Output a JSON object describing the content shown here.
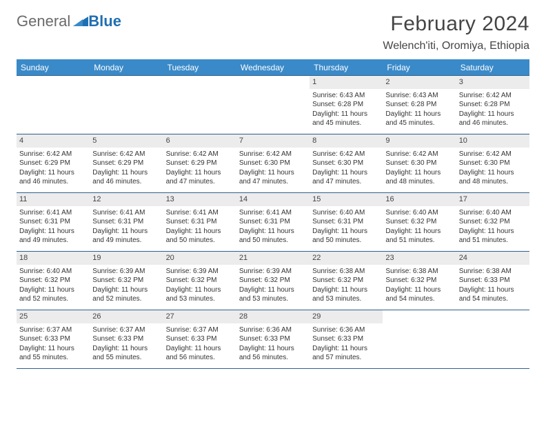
{
  "logo": {
    "general": "General",
    "blue": "Blue"
  },
  "title": "February 2024",
  "location": "Welench'iti, Oromiya, Ethiopia",
  "colors": {
    "header_bg": "#3a8ac9",
    "header_text": "#ffffff",
    "daynum_bg": "#ececec",
    "rule": "#2e5f8a",
    "logo_gray": "#6a6a6a",
    "logo_blue": "#1f6fb2",
    "text": "#333333"
  },
  "typography": {
    "title_pt": 30,
    "location_pt": 16,
    "header_pt": 12,
    "body_pt": 10
  },
  "weekdays": [
    "Sunday",
    "Monday",
    "Tuesday",
    "Wednesday",
    "Thursday",
    "Friday",
    "Saturday"
  ],
  "weeks": [
    [
      null,
      null,
      null,
      null,
      {
        "n": "1",
        "sunrise": "Sunrise: 6:43 AM",
        "sunset": "Sunset: 6:28 PM",
        "daylight": "Daylight: 11 hours and 45 minutes."
      },
      {
        "n": "2",
        "sunrise": "Sunrise: 6:43 AM",
        "sunset": "Sunset: 6:28 PM",
        "daylight": "Daylight: 11 hours and 45 minutes."
      },
      {
        "n": "3",
        "sunrise": "Sunrise: 6:42 AM",
        "sunset": "Sunset: 6:28 PM",
        "daylight": "Daylight: 11 hours and 46 minutes."
      }
    ],
    [
      {
        "n": "4",
        "sunrise": "Sunrise: 6:42 AM",
        "sunset": "Sunset: 6:29 PM",
        "daylight": "Daylight: 11 hours and 46 minutes."
      },
      {
        "n": "5",
        "sunrise": "Sunrise: 6:42 AM",
        "sunset": "Sunset: 6:29 PM",
        "daylight": "Daylight: 11 hours and 46 minutes."
      },
      {
        "n": "6",
        "sunrise": "Sunrise: 6:42 AM",
        "sunset": "Sunset: 6:29 PM",
        "daylight": "Daylight: 11 hours and 47 minutes."
      },
      {
        "n": "7",
        "sunrise": "Sunrise: 6:42 AM",
        "sunset": "Sunset: 6:30 PM",
        "daylight": "Daylight: 11 hours and 47 minutes."
      },
      {
        "n": "8",
        "sunrise": "Sunrise: 6:42 AM",
        "sunset": "Sunset: 6:30 PM",
        "daylight": "Daylight: 11 hours and 47 minutes."
      },
      {
        "n": "9",
        "sunrise": "Sunrise: 6:42 AM",
        "sunset": "Sunset: 6:30 PM",
        "daylight": "Daylight: 11 hours and 48 minutes."
      },
      {
        "n": "10",
        "sunrise": "Sunrise: 6:42 AM",
        "sunset": "Sunset: 6:30 PM",
        "daylight": "Daylight: 11 hours and 48 minutes."
      }
    ],
    [
      {
        "n": "11",
        "sunrise": "Sunrise: 6:41 AM",
        "sunset": "Sunset: 6:31 PM",
        "daylight": "Daylight: 11 hours and 49 minutes."
      },
      {
        "n": "12",
        "sunrise": "Sunrise: 6:41 AM",
        "sunset": "Sunset: 6:31 PM",
        "daylight": "Daylight: 11 hours and 49 minutes."
      },
      {
        "n": "13",
        "sunrise": "Sunrise: 6:41 AM",
        "sunset": "Sunset: 6:31 PM",
        "daylight": "Daylight: 11 hours and 50 minutes."
      },
      {
        "n": "14",
        "sunrise": "Sunrise: 6:41 AM",
        "sunset": "Sunset: 6:31 PM",
        "daylight": "Daylight: 11 hours and 50 minutes."
      },
      {
        "n": "15",
        "sunrise": "Sunrise: 6:40 AM",
        "sunset": "Sunset: 6:31 PM",
        "daylight": "Daylight: 11 hours and 50 minutes."
      },
      {
        "n": "16",
        "sunrise": "Sunrise: 6:40 AM",
        "sunset": "Sunset: 6:32 PM",
        "daylight": "Daylight: 11 hours and 51 minutes."
      },
      {
        "n": "17",
        "sunrise": "Sunrise: 6:40 AM",
        "sunset": "Sunset: 6:32 PM",
        "daylight": "Daylight: 11 hours and 51 minutes."
      }
    ],
    [
      {
        "n": "18",
        "sunrise": "Sunrise: 6:40 AM",
        "sunset": "Sunset: 6:32 PM",
        "daylight": "Daylight: 11 hours and 52 minutes."
      },
      {
        "n": "19",
        "sunrise": "Sunrise: 6:39 AM",
        "sunset": "Sunset: 6:32 PM",
        "daylight": "Daylight: 11 hours and 52 minutes."
      },
      {
        "n": "20",
        "sunrise": "Sunrise: 6:39 AM",
        "sunset": "Sunset: 6:32 PM",
        "daylight": "Daylight: 11 hours and 53 minutes."
      },
      {
        "n": "21",
        "sunrise": "Sunrise: 6:39 AM",
        "sunset": "Sunset: 6:32 PM",
        "daylight": "Daylight: 11 hours and 53 minutes."
      },
      {
        "n": "22",
        "sunrise": "Sunrise: 6:38 AM",
        "sunset": "Sunset: 6:32 PM",
        "daylight": "Daylight: 11 hours and 53 minutes."
      },
      {
        "n": "23",
        "sunrise": "Sunrise: 6:38 AM",
        "sunset": "Sunset: 6:32 PM",
        "daylight": "Daylight: 11 hours and 54 minutes."
      },
      {
        "n": "24",
        "sunrise": "Sunrise: 6:38 AM",
        "sunset": "Sunset: 6:33 PM",
        "daylight": "Daylight: 11 hours and 54 minutes."
      }
    ],
    [
      {
        "n": "25",
        "sunrise": "Sunrise: 6:37 AM",
        "sunset": "Sunset: 6:33 PM",
        "daylight": "Daylight: 11 hours and 55 minutes."
      },
      {
        "n": "26",
        "sunrise": "Sunrise: 6:37 AM",
        "sunset": "Sunset: 6:33 PM",
        "daylight": "Daylight: 11 hours and 55 minutes."
      },
      {
        "n": "27",
        "sunrise": "Sunrise: 6:37 AM",
        "sunset": "Sunset: 6:33 PM",
        "daylight": "Daylight: 11 hours and 56 minutes."
      },
      {
        "n": "28",
        "sunrise": "Sunrise: 6:36 AM",
        "sunset": "Sunset: 6:33 PM",
        "daylight": "Daylight: 11 hours and 56 minutes."
      },
      {
        "n": "29",
        "sunrise": "Sunrise: 6:36 AM",
        "sunset": "Sunset: 6:33 PM",
        "daylight": "Daylight: 11 hours and 57 minutes."
      },
      null,
      null
    ]
  ]
}
